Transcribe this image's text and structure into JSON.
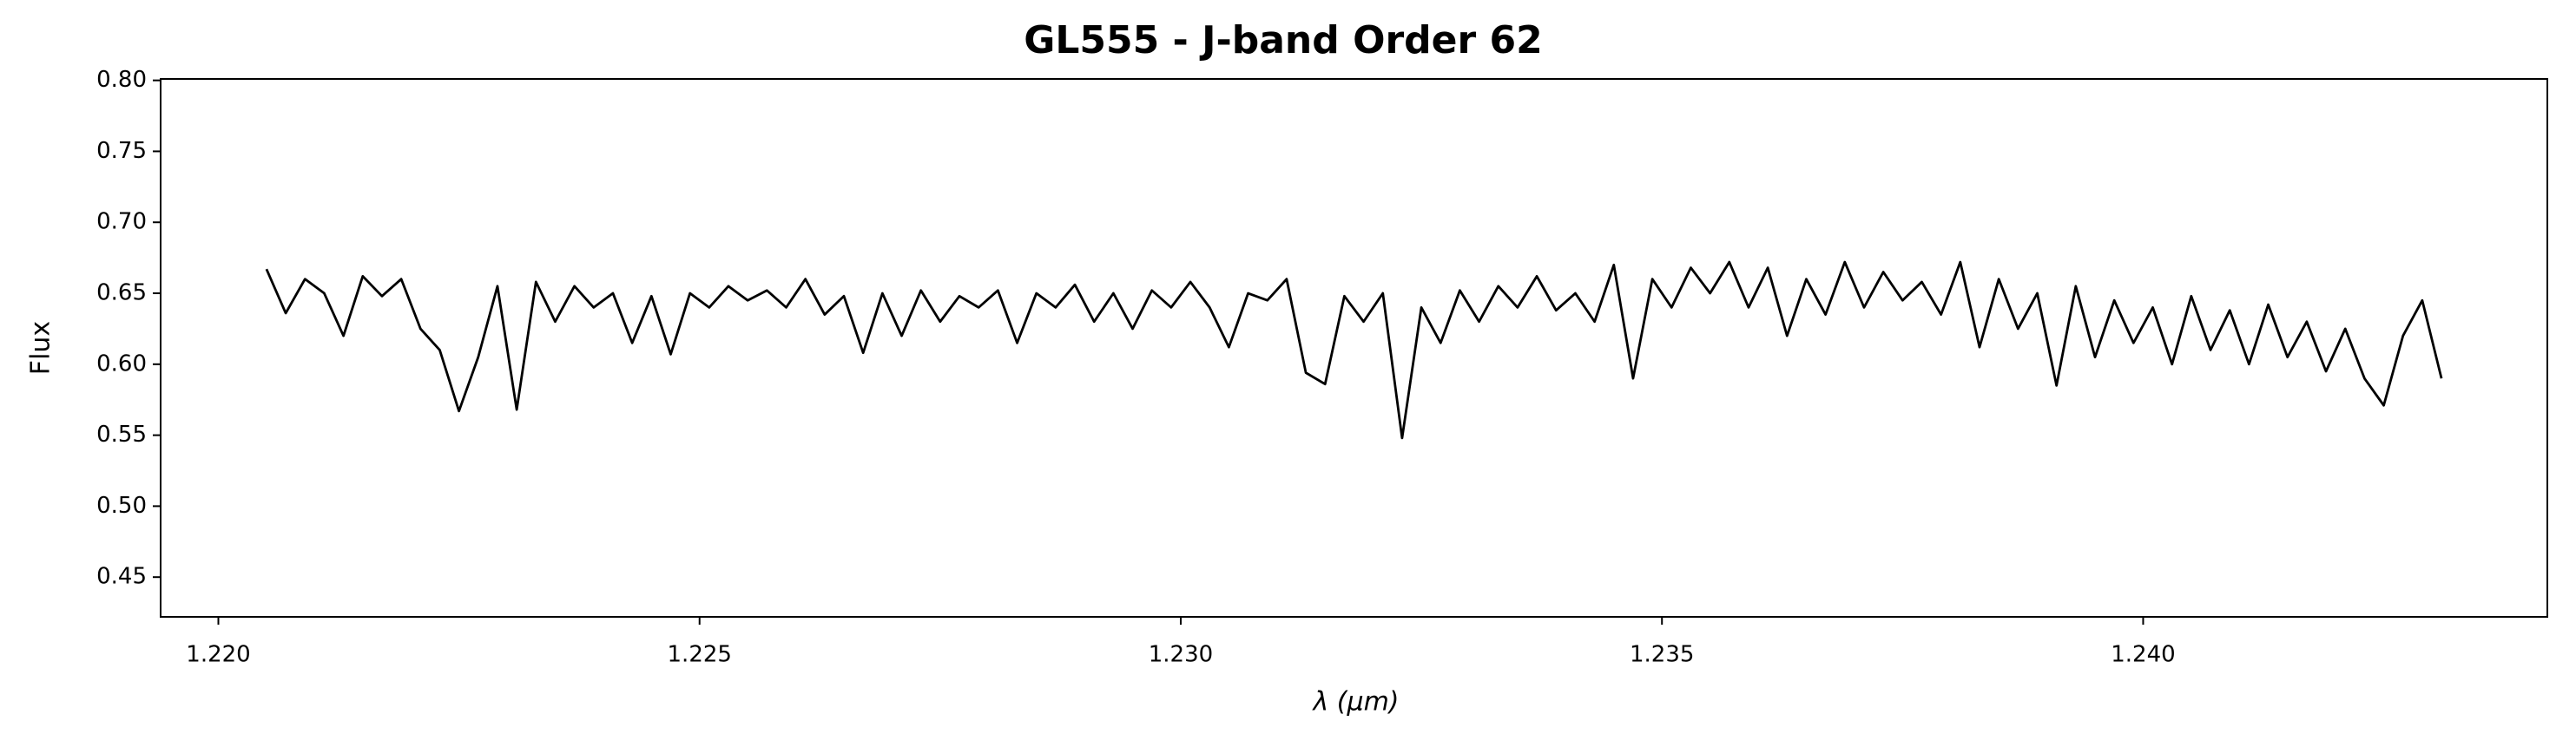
{
  "chart_data": {
    "type": "line",
    "title": "GL555 - J-band Order 62",
    "xlabel": "λ (μm)",
    "ylabel": "Flux",
    "color": "#000000",
    "x": [
      1.2205,
      1.2207,
      1.2209,
      1.2211,
      1.2213,
      1.2215,
      1.2217,
      1.2219,
      1.2221,
      1.2223,
      1.2225,
      1.2227,
      1.2229,
      1.2231,
      1.2233,
      1.2235,
      1.2237,
      1.2239,
      1.2241,
      1.2243,
      1.2245,
      1.2247,
      1.2249,
      1.2251,
      1.2253,
      1.2255,
      1.2257,
      1.2259,
      1.2261,
      1.2263,
      1.2265,
      1.2267,
      1.2269,
      1.2271,
      1.2273,
      1.2275,
      1.2277,
      1.2279,
      1.2281,
      1.2283,
      1.2285,
      1.2287,
      1.2289,
      1.2291,
      1.2293,
      1.2295,
      1.2297,
      1.2299,
      1.2301,
      1.2303,
      1.2305,
      1.2307,
      1.2309,
      1.2311,
      1.2313,
      1.2315,
      1.2317,
      1.2319,
      1.2321,
      1.2323,
      1.2325,
      1.2327,
      1.2329,
      1.2331,
      1.2333,
      1.2335,
      1.2337,
      1.2339,
      1.2341,
      1.2343,
      1.2345,
      1.2347,
      1.2349,
      1.2351,
      1.2353,
      1.2355,
      1.2357,
      1.2359,
      1.2361,
      1.2363,
      1.2365,
      1.2367,
      1.2369,
      1.2371,
      1.2373,
      1.2375,
      1.2377,
      1.2379,
      1.2381,
      1.2383,
      1.2385,
      1.2387,
      1.2389,
      1.2391,
      1.2393,
      1.2395,
      1.2397,
      1.2399,
      1.2401,
      1.2403,
      1.2405,
      1.2407,
      1.2409,
      1.2411,
      1.2413,
      1.2415,
      1.2417,
      1.2419,
      1.2421,
      1.2423,
      1.2425,
      1.2427,
      1.2429,
      1.2431
    ],
    "values": [
      0.667,
      0.636,
      0.66,
      0.65,
      0.62,
      0.662,
      0.648,
      0.66,
      0.625,
      0.61,
      0.567,
      0.605,
      0.655,
      0.568,
      0.658,
      0.63,
      0.655,
      0.64,
      0.65,
      0.615,
      0.648,
      0.607,
      0.65,
      0.64,
      0.655,
      0.645,
      0.652,
      0.64,
      0.66,
      0.635,
      0.648,
      0.608,
      0.65,
      0.62,
      0.652,
      0.63,
      0.648,
      0.64,
      0.652,
      0.615,
      0.65,
      0.64,
      0.656,
      0.63,
      0.65,
      0.625,
      0.652,
      0.64,
      0.658,
      0.64,
      0.612,
      0.65,
      0.645,
      0.66,
      0.594,
      0.586,
      0.648,
      0.63,
      0.65,
      0.548,
      0.64,
      0.615,
      0.652,
      0.63,
      0.655,
      0.64,
      0.662,
      0.638,
      0.65,
      0.63,
      0.67,
      0.59,
      0.66,
      0.64,
      0.668,
      0.65,
      0.672,
      0.64,
      0.668,
      0.62,
      0.66,
      0.635,
      0.672,
      0.64,
      0.665,
      0.645,
      0.658,
      0.635,
      0.672,
      0.612,
      0.66,
      0.625,
      0.65,
      0.585,
      0.655,
      0.605,
      0.645,
      0.615,
      0.64,
      0.6,
      0.648,
      0.61,
      0.638,
      0.6,
      0.642,
      0.605,
      0.63,
      0.595,
      0.625,
      0.59,
      0.571,
      0.62,
      0.645,
      0.59
    ],
    "xlim": [
      1.2194,
      1.2442
    ],
    "ylim": [
      0.422,
      0.801
    ],
    "xticks": [
      {
        "value": 1.22,
        "label": "1.220"
      },
      {
        "value": 1.225,
        "label": "1.225"
      },
      {
        "value": 1.23,
        "label": "1.230"
      },
      {
        "value": 1.235,
        "label": "1.235"
      },
      {
        "value": 1.24,
        "label": "1.240"
      }
    ],
    "yticks": [
      {
        "value": 0.45,
        "label": "0.45"
      },
      {
        "value": 0.5,
        "label": "0.50"
      },
      {
        "value": 0.55,
        "label": "0.55"
      },
      {
        "value": 0.6,
        "label": "0.60"
      },
      {
        "value": 0.65,
        "label": "0.65"
      },
      {
        "value": 0.7,
        "label": "0.70"
      },
      {
        "value": 0.75,
        "label": "0.75"
      },
      {
        "value": 0.8,
        "label": "0.80"
      }
    ]
  }
}
